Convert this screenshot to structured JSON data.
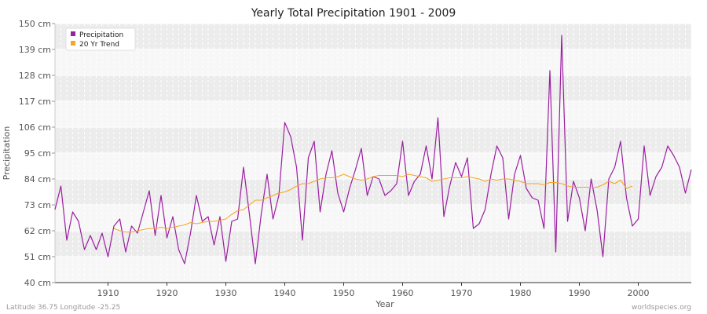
{
  "chart_data": {
    "type": "line",
    "title": "Yearly Total Precipitation 1901 - 2009",
    "xlabel": "Year",
    "ylabel": "Precipitation",
    "xlim": [
      1901,
      2009
    ],
    "ylim": [
      40,
      150
    ],
    "y_ticks": [
      "40 cm",
      "51 cm",
      "62 cm",
      "73 cm",
      "84 cm",
      "95 cm",
      "106 cm",
      "117 cm",
      "128 cm",
      "139 cm",
      "150 cm"
    ],
    "x_ticks": [
      1910,
      1920,
      1930,
      1940,
      1950,
      1960,
      1970,
      1980,
      1990,
      2000
    ],
    "grid": true,
    "legend_position": "top-left",
    "series": [
      {
        "name": "Precipitation",
        "color": "#9b1fa1",
        "x": [
          1901,
          1902,
          1903,
          1904,
          1905,
          1906,
          1907,
          1908,
          1909,
          1910,
          1911,
          1912,
          1913,
          1914,
          1915,
          1916,
          1917,
          1918,
          1919,
          1920,
          1921,
          1922,
          1923,
          1924,
          1925,
          1926,
          1927,
          1928,
          1929,
          1930,
          1931,
          1932,
          1933,
          1934,
          1935,
          1936,
          1937,
          1938,
          1939,
          1940,
          1941,
          1942,
          1943,
          1944,
          1945,
          1946,
          1947,
          1948,
          1949,
          1950,
          1951,
          1952,
          1953,
          1954,
          1955,
          1956,
          1957,
          1958,
          1959,
          1960,
          1961,
          1962,
          1963,
          1964,
          1965,
          1966,
          1967,
          1968,
          1969,
          1970,
          1971,
          1972,
          1973,
          1974,
          1975,
          1976,
          1977,
          1978,
          1979,
          1980,
          1981,
          1982,
          1983,
          1984,
          1985,
          1986,
          1987,
          1988,
          1989,
          1990,
          1991,
          1992,
          1993,
          1994,
          1995,
          1996,
          1997,
          1998,
          1999,
          2000,
          2001,
          2002,
          2003,
          2004,
          2005,
          2006,
          2007,
          2008,
          2009
        ],
        "values": [
          71,
          81,
          58,
          70,
          66,
          54,
          60,
          54,
          61,
          51,
          64,
          67,
          53,
          64,
          61,
          70,
          79,
          60,
          77,
          59,
          68,
          54,
          48,
          61,
          77,
          66,
          68,
          56,
          68,
          49,
          66,
          67,
          89,
          69,
          48,
          69,
          86,
          67,
          77,
          108,
          102,
          89,
          58,
          93,
          100,
          70,
          86,
          96,
          78,
          70,
          80,
          88,
          97,
          77,
          85,
          84,
          77,
          79,
          82,
          100,
          77,
          83,
          86,
          98,
          84,
          110,
          68,
          81,
          91,
          85,
          93,
          63,
          65,
          71,
          86,
          98,
          93,
          67,
          86,
          94,
          80,
          76,
          75,
          63,
          130,
          53,
          145,
          66,
          83,
          76,
          62,
          84,
          71,
          51,
          84,
          89,
          100,
          76,
          64,
          67,
          98,
          77,
          85,
          89,
          98,
          94,
          89,
          78,
          88
        ]
      },
      {
        "name": "20 Yr Trend",
        "color": "#f5a623",
        "x": [
          1911,
          1912,
          1913,
          1914,
          1915,
          1916,
          1917,
          1918,
          1919,
          1920,
          1921,
          1922,
          1923,
          1924,
          1925,
          1926,
          1927,
          1928,
          1929,
          1930,
          1931,
          1932,
          1933,
          1934,
          1935,
          1936,
          1937,
          1938,
          1939,
          1940,
          1941,
          1942,
          1943,
          1944,
          1945,
          1946,
          1947,
          1948,
          1949,
          1950,
          1951,
          1952,
          1953,
          1954,
          1955,
          1956,
          1957,
          1958,
          1959,
          1960,
          1961,
          1962,
          1963,
          1964,
          1965,
          1966,
          1967,
          1968,
          1969,
          1970,
          1971,
          1972,
          1973,
          1974,
          1975,
          1976,
          1977,
          1978,
          1979,
          1980,
          1981,
          1982,
          1983,
          1984,
          1985,
          1986,
          1987,
          1988,
          1989,
          1990,
          1991,
          1992,
          1993,
          1994,
          1995,
          1996,
          1997,
          1998,
          1999
        ],
        "values": [
          63,
          62,
          61.5,
          61.5,
          62,
          62.5,
          63,
          63,
          63.5,
          63,
          63.5,
          64,
          64.5,
          65.5,
          65,
          65.5,
          66,
          66,
          66.5,
          67,
          69,
          70.5,
          71,
          73,
          75,
          75,
          76,
          77,
          78,
          78.5,
          79.5,
          81,
          82,
          82,
          83,
          84,
          84.5,
          84.5,
          85,
          86,
          85,
          84,
          83.5,
          84,
          85,
          85.5,
          85.5,
          85.5,
          85.5,
          85,
          86,
          85.5,
          85,
          84.5,
          83,
          83.5,
          84,
          84.5,
          84.5,
          84.5,
          85,
          84.5,
          84,
          83,
          84,
          83.5,
          84,
          84,
          83.5,
          83,
          82,
          82,
          82,
          81.5,
          82.5,
          82.5,
          82,
          81,
          80.5,
          80.5,
          80.5,
          80.5,
          80.5,
          81.5,
          83,
          82,
          83.5,
          80,
          81
        ]
      }
    ]
  },
  "footer": {
    "coords": "Latitude 36.75 Longitude -25.25",
    "site": "worldspecies.org"
  }
}
